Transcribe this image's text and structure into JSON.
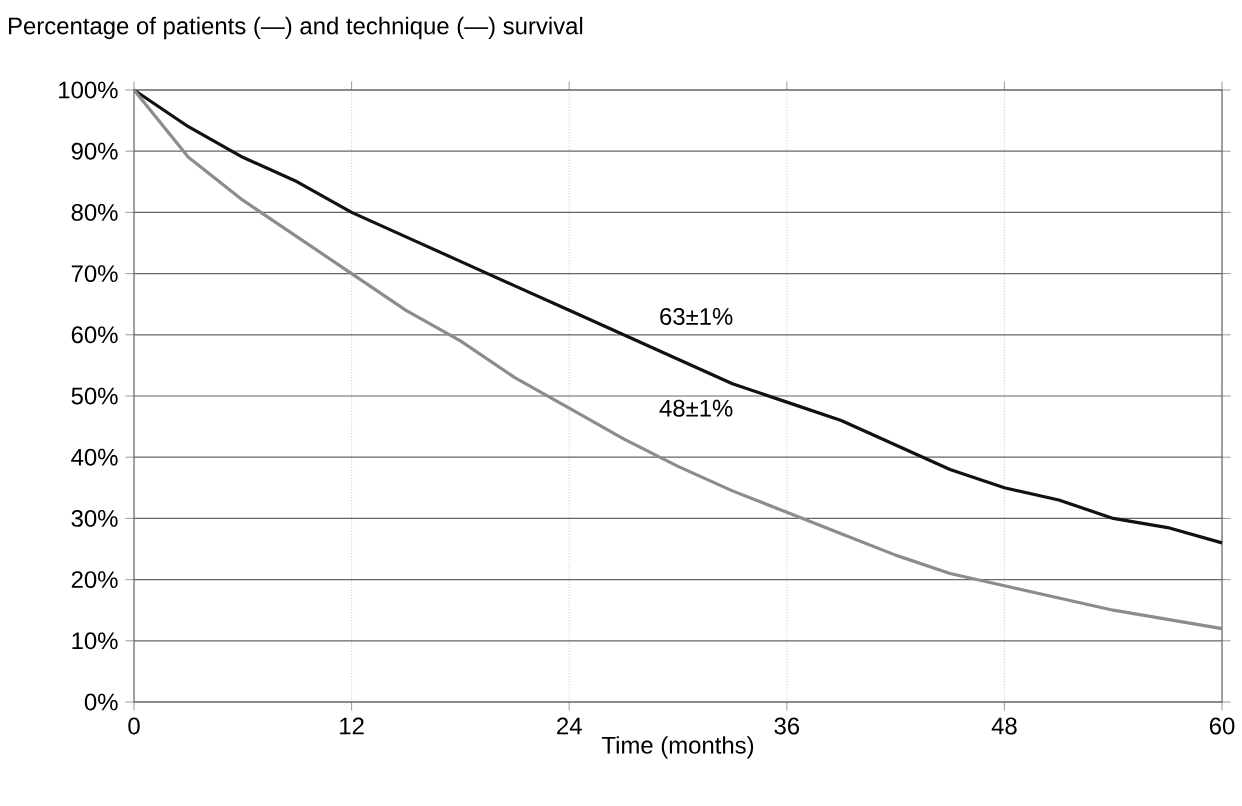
{
  "chart_data": {
    "type": "line",
    "title": "Percentage of patients (—) and technique (—) survival",
    "xlabel": "Time (months)",
    "annotations": [
      "63±1%",
      "48±1%"
    ],
    "x": [
      0,
      3,
      6,
      9,
      12,
      15,
      18,
      21,
      24,
      27,
      30,
      33,
      36,
      39,
      42,
      45,
      48,
      51,
      54,
      57,
      60
    ],
    "series": [
      {
        "color": "#111111",
        "values": [
          100,
          94,
          89,
          85,
          80,
          76,
          72,
          68,
          64,
          60,
          56,
          52,
          49,
          46,
          42,
          38,
          35,
          33,
          30,
          28.5,
          26
        ]
      },
      {
        "color": "#8c8c8c",
        "values": [
          100,
          89,
          82,
          76,
          70,
          64,
          59,
          53,
          48,
          43,
          38.5,
          34.5,
          31,
          27.5,
          24,
          21,
          19,
          17,
          15,
          13.5,
          12
        ]
      }
    ],
    "xlim": [
      0,
      60
    ],
    "ylim": [
      0,
      100
    ],
    "xticks": [
      0,
      12,
      24,
      36,
      48,
      60
    ],
    "yticks": [
      {
        "value": 0,
        "label": "0%"
      },
      {
        "value": 10,
        "label": "10%"
      },
      {
        "value": 20,
        "label": "20%"
      },
      {
        "value": 30,
        "label": "30%"
      },
      {
        "value": 40,
        "label": "40%"
      },
      {
        "value": 50,
        "label": "50%"
      },
      {
        "value": 60,
        "label": "60%"
      },
      {
        "value": 70,
        "label": "70%"
      },
      {
        "value": 80,
        "label": "80%"
      },
      {
        "value": 90,
        "label": "90%"
      },
      {
        "value": 100,
        "label": "100%"
      }
    ],
    "grid": true,
    "marker": "none",
    "line_style": "solid"
  }
}
